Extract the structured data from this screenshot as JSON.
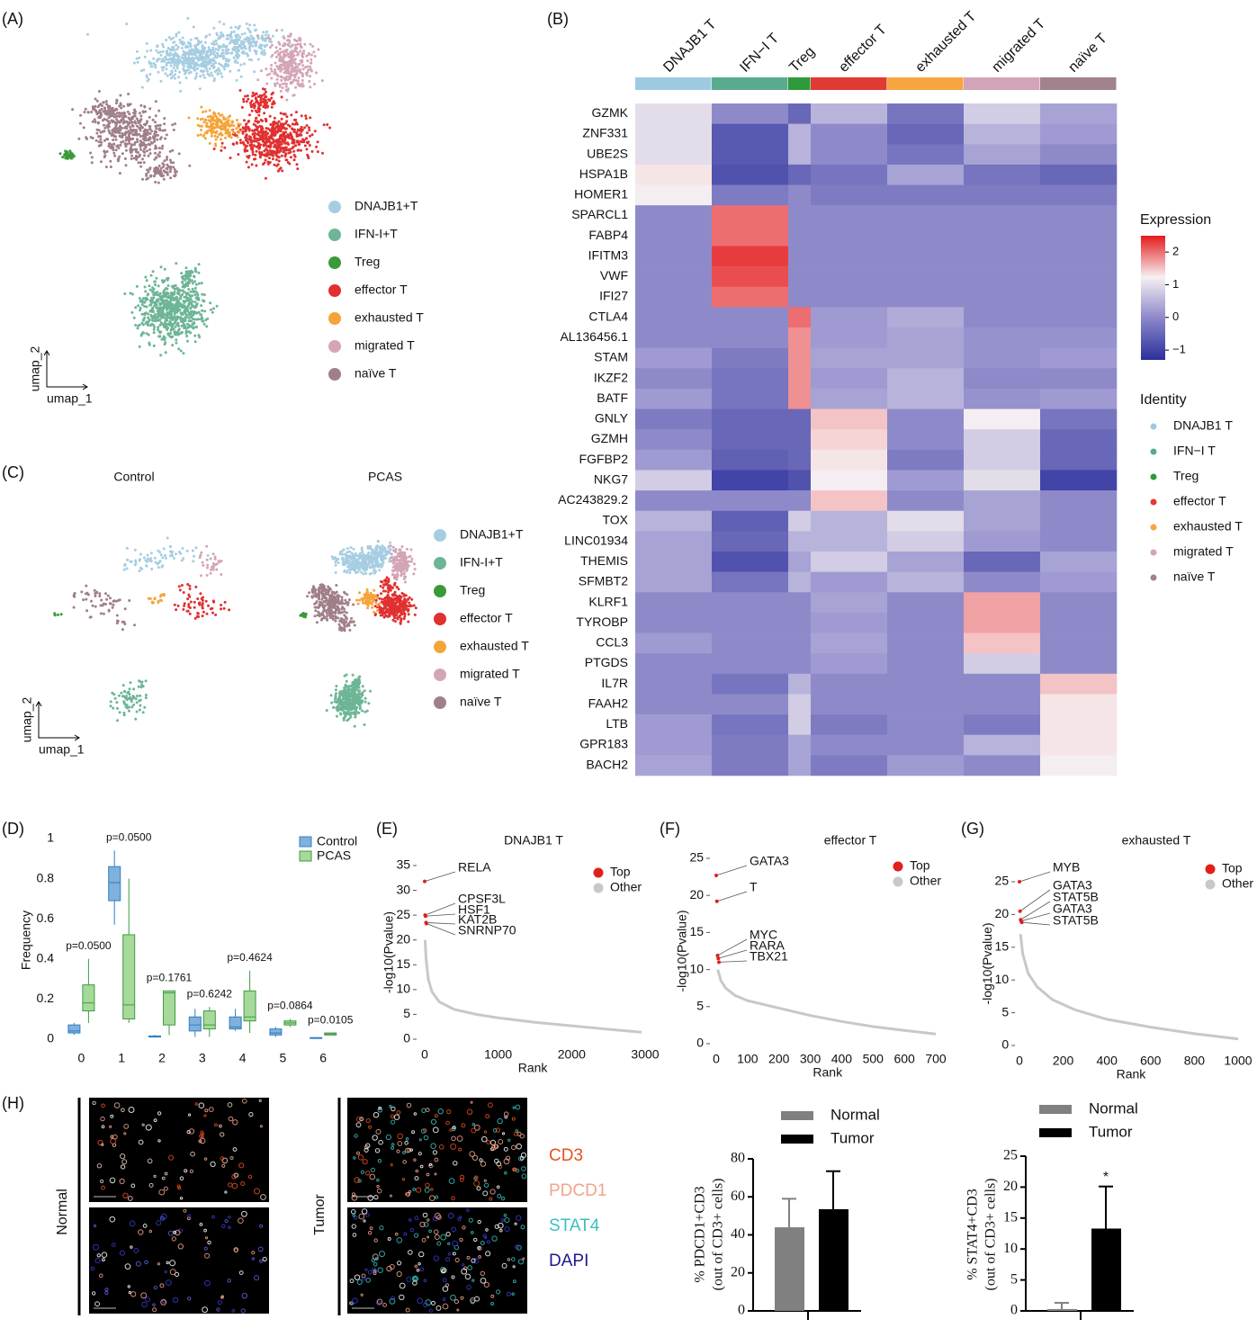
{
  "panels": [
    "(A)",
    "(B)",
    "(C)",
    "(D)",
    "(E)",
    "(F)",
    "(G)",
    "(H)"
  ],
  "images": {
    "rows": [
      "Normal",
      "Tumor"
    ],
    "channels": [
      {
        "name": "CD3",
        "color": "#e8501e"
      },
      {
        "name": "PDCD1",
        "color": "#f2a48c"
      },
      {
        "name": "STAT4",
        "color": "#3bbfbf"
      },
      {
        "name": "DAPI",
        "color": "#1a1a8c"
      }
    ]
  },
  "chart_data": [
    {
      "type": "umap",
      "xlabel": "umap_1",
      "ylabel": "umap_2",
      "legend": [
        "DNAJB1+T",
        "IFN-I+T",
        "Treg",
        "effector T",
        "exhausted T",
        "migrated T",
        "naïve T"
      ],
      "colors": [
        "#a6cde2",
        "#6db596",
        "#3a9a3a",
        "#e03030",
        "#f5a43a",
        "#d4a5b7",
        "#a07f89"
      ]
    },
    {
      "type": "heatmap",
      "categories": [
        "DNAJB1 T",
        "IFN−I T",
        "Treg",
        "effector T",
        "exhausted T",
        "migrated T",
        "naïve T"
      ],
      "colors": [
        "#9ecae1",
        "#5aab8e",
        "#2e9a3a",
        "#e03a33",
        "#f7a541",
        "#d3a3b9",
        "#a1828d"
      ],
      "genes": [
        "GZMK",
        "ZNF331",
        "UBE2S",
        "HSPA1B",
        "HOMER1",
        "SPARCL1",
        "FABP4",
        "IFITM3",
        "VWF",
        "IFI27",
        "CTLA4",
        "AL136456.1",
        "STAM",
        "IKZF2",
        "BATF",
        "GNLY",
        "GZMH",
        "FGFBP2",
        "NKG7",
        "AC243829.2",
        "TOX",
        "LINC01934",
        "THEMIS",
        "SFMBT2",
        "KLRF1",
        "TYROBP",
        "CCL3",
        "PTGDS",
        "IL7R",
        "FAAH2",
        "LTB",
        "GPR183",
        "BACH2"
      ],
      "values": [
        [
          1,
          0,
          -0.5,
          0.5,
          -0.3,
          0.8,
          0.3
        ],
        [
          1,
          -0.7,
          0.5,
          0,
          -0.5,
          0.5,
          0.2
        ],
        [
          1,
          -0.7,
          0.5,
          0,
          -0.3,
          0.3,
          0
        ],
        [
          1.3,
          -0.8,
          -0.5,
          -0.3,
          0.3,
          -0.3,
          -0.5
        ],
        [
          1.2,
          -0.2,
          0,
          -0.2,
          -0.2,
          -0.2,
          -0.2
        ],
        [
          0,
          2,
          0,
          0,
          0,
          0,
          0
        ],
        [
          0,
          2,
          0,
          0,
          0,
          0,
          0
        ],
        [
          0,
          2.3,
          0,
          0,
          0,
          0,
          0
        ],
        [
          0,
          2.2,
          0,
          0,
          0,
          0,
          0
        ],
        [
          0,
          2,
          0,
          0,
          0,
          0,
          0
        ],
        [
          0,
          0,
          2,
          0.2,
          0.4,
          0,
          0
        ],
        [
          0,
          0,
          1.8,
          0.2,
          0.3,
          0.1,
          0.1
        ],
        [
          0.2,
          -0.2,
          1.8,
          0.3,
          0.3,
          0.1,
          0.2
        ],
        [
          0,
          -0.3,
          1.8,
          0.2,
          0.5,
          0,
          0
        ],
        [
          0.2,
          -0.3,
          1.8,
          0.3,
          0.5,
          0.1,
          0.2
        ],
        [
          -0.2,
          -0.5,
          -0.5,
          1.5,
          0,
          1.2,
          -0.3
        ],
        [
          0,
          -0.5,
          -0.5,
          1.4,
          0,
          0.8,
          -0.5
        ],
        [
          0.2,
          -0.6,
          -0.5,
          1.3,
          -0.2,
          0.8,
          -0.5
        ],
        [
          0.8,
          -1,
          -0.8,
          1.2,
          0.2,
          1,
          -1
        ],
        [
          0,
          0,
          0,
          1.5,
          0,
          0.3,
          0
        ],
        [
          0.5,
          -0.6,
          0.8,
          0.5,
          1,
          0.3,
          0
        ],
        [
          0.3,
          -0.5,
          0.5,
          0.5,
          0.8,
          0.2,
          0
        ],
        [
          0.3,
          -0.8,
          0.3,
          0.8,
          0.3,
          -0.5,
          0.3
        ],
        [
          0.3,
          -0.3,
          0.5,
          0.2,
          0.5,
          0,
          0.2
        ],
        [
          0,
          0,
          0,
          0.3,
          0,
          1.7,
          0
        ],
        [
          0,
          0,
          0,
          0.2,
          0,
          1.7,
          0
        ],
        [
          0.2,
          0,
          0,
          0.3,
          0,
          1.5,
          0
        ],
        [
          0,
          0,
          0,
          0.2,
          0,
          0.8,
          0
        ],
        [
          0,
          -0.3,
          0.5,
          0,
          0,
          0,
          1.5
        ],
        [
          0,
          0,
          0.8,
          0,
          0,
          0,
          1.3
        ],
        [
          0.2,
          -0.3,
          0.8,
          -0.2,
          0,
          -0.2,
          1.3
        ],
        [
          0.2,
          -0.2,
          0.3,
          0,
          0,
          0.5,
          1.3
        ],
        [
          0.3,
          -0.2,
          0.3,
          -0.2,
          0.2,
          0,
          1.2
        ]
      ],
      "colorbar_title": "Expression",
      "clim": [
        -1.3,
        2.5
      ],
      "colorscale": [
        "#2b2f9c",
        "#8b87c9",
        "#f7f0f2",
        "#e41a1c"
      ],
      "cticks": [
        2,
        1,
        0,
        {
          "value": -1,
          "label": "−1"
        }
      ],
      "legend_title": "Identity"
    },
    {
      "type": "umap",
      "titles": [
        "Control",
        "PCAS"
      ],
      "xlabel": "umap_1",
      "ylabel": "umap_2",
      "legend": [
        "DNAJB1+T",
        "IFN-I+T",
        "Treg",
        "effector T",
        "exhausted T",
        "migrated T",
        "naïve T"
      ],
      "colors": [
        "#a6cde2",
        "#6db596",
        "#3a9a3a",
        "#e03030",
        "#f5a43a",
        "#d4a5b7",
        "#a07f89"
      ]
    },
    {
      "type": "box",
      "ylabel": "Frequency",
      "categories": [
        0,
        1,
        2,
        3,
        4,
        5,
        6
      ],
      "ylim": [
        -0.01,
        1
      ],
      "yticks": [
        0,
        0.2,
        0.4,
        0.6,
        0.8,
        1
      ],
      "series": [
        {
          "name": "Control",
          "color": "#2f7fc1",
          "fill": "#7fb1dc",
          "boxes": [
            [
              0.02,
              0.03,
              0.04,
              0.07,
              0.08
            ],
            [
              0.57,
              0.69,
              0.78,
              0.86,
              0.94
            ],
            [
              0.01,
              0.01,
              0.01,
              0.015,
              0.02
            ],
            [
              0.01,
              0.04,
              0.07,
              0.11,
              0.15
            ],
            [
              0.04,
              0.05,
              0.06,
              0.11,
              0.15
            ],
            [
              0.01,
              0.02,
              0.03,
              0.05,
              0.06
            ],
            [
              0.005,
              0.005,
              0.005,
              0.007,
              0.008
            ]
          ]
        },
        {
          "name": "PCAS",
          "color": "#3f9b3f",
          "fill": "#a6d99a",
          "boxes": [
            [
              0.08,
              0.14,
              0.18,
              0.27,
              0.4
            ],
            [
              0.08,
              0.1,
              0.17,
              0.52,
              0.8
            ],
            [
              0.02,
              0.07,
              0.23,
              0.24,
              0.24
            ],
            [
              0.01,
              0.05,
              0.07,
              0.14,
              0.16
            ],
            [
              0.03,
              0.09,
              0.11,
              0.24,
              0.34
            ],
            [
              0.06,
              0.07,
              0.08,
              0.09,
              0.1
            ],
            [
              0.02,
              0.02,
              0.025,
              0.03,
              0.03
            ]
          ]
        }
      ],
      "annotations": [
        "p=0.0500",
        "p=0.0500",
        "p=0.1761",
        "p=0.6242",
        "p=0.4624",
        "p=0.0864",
        "p=0.0105"
      ]
    },
    {
      "type": "scatter",
      "title": "DNAJB1 T",
      "xlabel": "Rank",
      "ylabel": "-log10(Pvalue)",
      "xlim": [
        -110,
        3050
      ],
      "xticks": [
        0,
        1000,
        2000,
        3000
      ],
      "ylim": [
        0,
        37
      ],
      "yticks": [
        0,
        5,
        10,
        15,
        20,
        25,
        30,
        35
      ],
      "series": [
        {
          "name": "Top",
          "color": "#e0201c",
          "x": [
            0,
            1,
            2,
            3,
            4
          ],
          "y": [
            31.8,
            25,
            24.8,
            23.5,
            23.3
          ],
          "labels": [
            "RELA",
            "CPSF3L",
            "HSF1",
            "KAT2B",
            "SNRNP70"
          ]
        },
        {
          "name": "Other",
          "color": "#c8c8c8",
          "x": [
            5,
            20,
            50,
            100,
            200,
            400,
            700,
            1000,
            1500,
            2000,
            2500,
            2950
          ],
          "y": [
            20,
            16,
            12,
            9.5,
            7.5,
            6,
            5,
            4.3,
            3.4,
            2.7,
            2,
            1.4
          ]
        }
      ]
    },
    {
      "type": "scatter",
      "title": "effector T",
      "xlabel": "Rank",
      "ylabel": "-log10(Pvalue)",
      "xlim": [
        -20,
        730
      ],
      "xticks": [
        0,
        100,
        200,
        300,
        400,
        500,
        600,
        700
      ],
      "ylim": [
        0,
        25.5
      ],
      "yticks": [
        0,
        5,
        10,
        15,
        20,
        25
      ],
      "series": [
        {
          "name": "Top",
          "color": "#e0201c",
          "x": [
            0,
            1,
            2,
            3,
            4
          ],
          "y": [
            22.7,
            19.2,
            11.9,
            11.5,
            11.0
          ],
          "labels": [
            "GATA3",
            "T",
            "MYC",
            "RARA",
            "TBX21"
          ]
        },
        {
          "name": "Other",
          "color": "#c8c8c8",
          "x": [
            5,
            15,
            30,
            60,
            100,
            200,
            300,
            400,
            500,
            600,
            700
          ],
          "y": [
            10,
            8.5,
            7.5,
            6.5,
            5.8,
            4.8,
            3.8,
            3.0,
            2.3,
            1.8,
            1.3
          ]
        }
      ]
    },
    {
      "type": "scatter",
      "title": "exhausted T",
      "xlabel": "Rank",
      "ylabel": "-log10(Pvalue)",
      "xlim": [
        -20,
        1040
      ],
      "xticks": [
        0,
        200,
        400,
        600,
        800,
        1000
      ],
      "ylim": [
        0,
        27
      ],
      "yticks": [
        0,
        5,
        10,
        15,
        20,
        25
      ],
      "series": [
        {
          "name": "Top",
          "color": "#e0201c",
          "x": [
            0,
            1,
            2,
            3,
            4
          ],
          "y": [
            25,
            20.5,
            19.2,
            19.0,
            18.8
          ],
          "labels": [
            "MYB",
            "GATA3",
            "STAT5B",
            "GATA3",
            "STAT5B"
          ]
        },
        {
          "name": "Other",
          "color": "#c8c8c8",
          "x": [
            5,
            15,
            40,
            80,
            150,
            250,
            400,
            600,
            800,
            1000
          ],
          "y": [
            17,
            14,
            11,
            9,
            7,
            5.5,
            4,
            2.8,
            1.8,
            1.0
          ]
        }
      ]
    },
    {
      "type": "bar",
      "ylabel": [
        "% PDCD1+CD3",
        "(out of CD3+ cells)"
      ],
      "categories": [
        "Normal",
        "Tumor"
      ],
      "colors": [
        "#808080",
        "#000000"
      ],
      "values": [
        44,
        53.5
      ],
      "errors": [
        15,
        20
      ],
      "ylim": [
        0,
        80
      ],
      "yticks": [
        0,
        20,
        40,
        60,
        80
      ],
      "annotations": [
        null,
        null
      ]
    },
    {
      "type": "bar",
      "ylabel": [
        "% STAT4+CD3",
        "(out of CD3+ cells)"
      ],
      "categories": [
        "Normal",
        "Tumor"
      ],
      "colors": [
        "#808080",
        "#000000"
      ],
      "values": [
        0.3,
        13.3
      ],
      "errors": [
        1.0,
        6.8
      ],
      "ylim": [
        0,
        25
      ],
      "yticks": [
        0,
        5,
        10,
        15,
        20,
        25
      ],
      "annotations": [
        null,
        "*"
      ]
    }
  ]
}
